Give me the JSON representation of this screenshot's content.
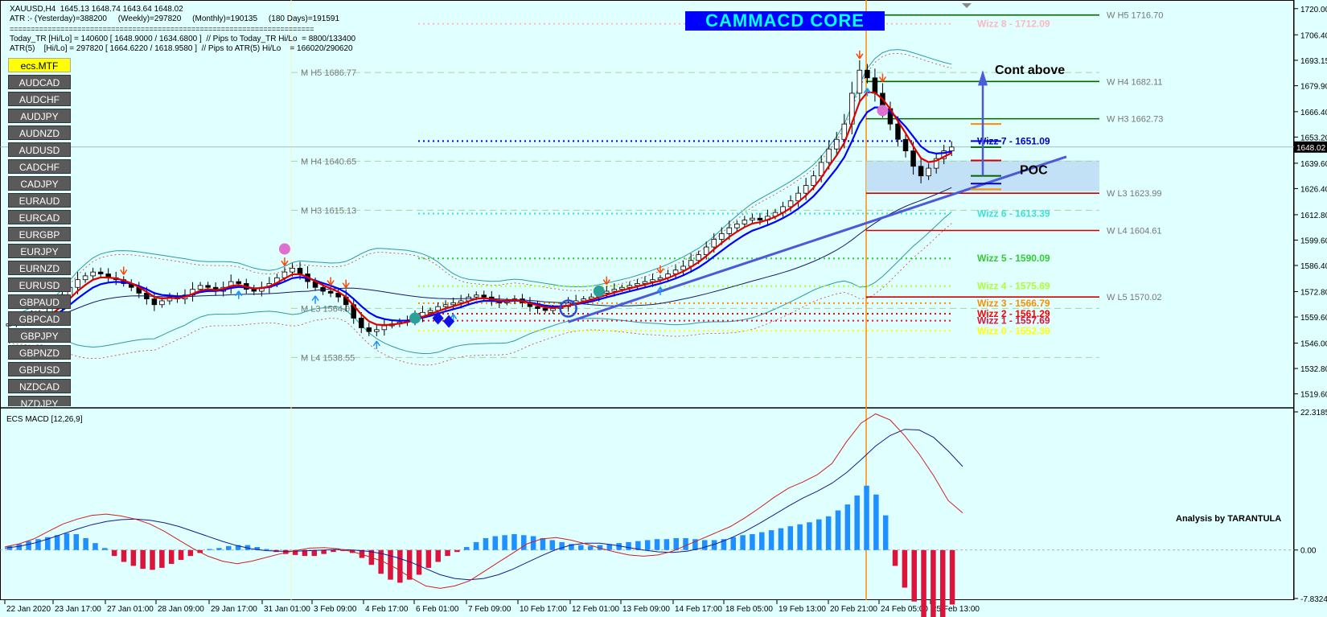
{
  "header": {
    "symbol_line": "XAUUSD,H4  1645.13 1648.74 1643.64 1648.02",
    "atr_line": "ATR :- (Yesterday)=388200     (Weekly)=297820     (Monthly)=190135     (180 Days)=191591",
    "separator": "========================================================================",
    "today_tr_line": "Today_TR [Hi/Lo] = 140600 [ 1648.9000 / 1634.6800 ]  // Pips to Today_TR Hi/Lo  = 8800/133400",
    "atr5_line": "ATR(5)    [Hi/Lo] = 297820 [ 1664.6220 / 1618.9580 ]  // Pips to ATR(5) Hi/Lo    = 166020/290620"
  },
  "brand": "CAMMACD CORE",
  "symbols": {
    "active": "ecs.MTF",
    "items": [
      "AUDCAD",
      "AUDCHF",
      "AUDJPY",
      "AUDNZD",
      "AUDUSD",
      "CADCHF",
      "CADJPY",
      "EURAUD",
      "EURCAD",
      "EURGBP",
      "EURJPY",
      "EURNZD",
      "EURUSD",
      "GBPAUD",
      "GBPCAD",
      "GBPJPY",
      "GBPNZD",
      "GBPUSD",
      "NZDCAD",
      "NZDJPY"
    ]
  },
  "annotations": {
    "cont_above": "Cont above",
    "poc": "POC",
    "credit": "Analysis by TARANTULA",
    "macd_title": "ECS MACD [12,26,9]"
  },
  "colors": {
    "background": "#e0ffff",
    "candle_up": "#ffffff",
    "candle_down": "#000000",
    "ema_fast": "#e00000",
    "ema_slow": "#0000ff",
    "macd_pos": "#1e90ff",
    "macd_neg": "#dc143c",
    "vertical_line": "#ff8c00"
  },
  "chart_data": [
    {
      "type": "candlestick",
      "title": "XAUUSD,H4",
      "price_axis": {
        "ticks": [
          1720.0,
          1706.4,
          1693.15,
          1679.9,
          1666.4,
          1653.2,
          1639.6,
          1626.4,
          1612.8,
          1599.6,
          1586.4,
          1572.8,
          1559.6,
          1546.0,
          1532.8,
          1519.6
        ],
        "current_price": 1648.02,
        "range": [
          1514,
          1722
        ]
      },
      "time_axis": {
        "ticks": [
          "22 Jan 2020",
          "23 Jan 17:00",
          "27 Jan 01:00",
          "28 Jan 09:00",
          "29 Jan 17:00",
          "31 Jan 01:00",
          "3 Feb 09:00",
          "4 Feb 17:00",
          "6 Feb 01:00",
          "7 Feb 09:00",
          "10 Feb 17:00",
          "12 Feb 01:00",
          "13 Feb 09:00",
          "14 Feb 17:00",
          "18 Feb 05:00",
          "19 Feb 13:00",
          "20 Feb 21:00",
          "24 Feb 05:00",
          "25 Feb 13:00"
        ]
      },
      "series": [
        {
          "name": "price",
          "close": [
            1556,
            1557,
            1558,
            1560,
            1559,
            1562,
            1566,
            1570,
            1575,
            1579,
            1581,
            1583,
            1582,
            1580,
            1579,
            1577,
            1575,
            1572,
            1569,
            1566,
            1568,
            1570,
            1569,
            1571,
            1574,
            1576,
            1575,
            1573,
            1575,
            1578,
            1577,
            1574,
            1573,
            1575,
            1577,
            1580,
            1583,
            1585,
            1582,
            1578,
            1575,
            1573,
            1572,
            1570,
            1566,
            1559,
            1554,
            1552,
            1553,
            1555,
            1556,
            1557,
            1558,
            1560,
            1562,
            1563,
            1565,
            1566,
            1567,
            1568,
            1570,
            1571,
            1570,
            1568,
            1567,
            1568,
            1569,
            1567,
            1565,
            1564,
            1563,
            1564,
            1565,
            1567,
            1568,
            1569,
            1570,
            1572,
            1573,
            1574,
            1575,
            1576,
            1577,
            1578,
            1579,
            1580,
            1582,
            1584,
            1586,
            1589,
            1592,
            1596,
            1600,
            1603,
            1606,
            1608,
            1610,
            1611,
            1610,
            1612,
            1614,
            1617,
            1620,
            1624,
            1628,
            1633,
            1640,
            1647,
            1652,
            1660,
            1676,
            1688,
            1684,
            1676,
            1668,
            1660,
            1652,
            1646,
            1638,
            1633,
            1637,
            1642,
            1646,
            1648
          ]
        }
      ],
      "pivot_levels": [
        {
          "label": "W H5 1716.70",
          "value": 1716.7
        },
        {
          "label": "W H4 1682.11",
          "value": 1682.11
        },
        {
          "label": "W H3 1662.73",
          "value": 1662.73
        },
        {
          "label": "W L3 1623.99",
          "value": 1623.99
        },
        {
          "label": "W L4 1604.61",
          "value": 1604.61
        },
        {
          "label": "W L5 1570.02",
          "value": 1570.02
        },
        {
          "label": "M H5 1686.77",
          "value": 1686.77
        },
        {
          "label": "M H4 1640.65",
          "value": 1640.65
        },
        {
          "label": "M H3 1615.13",
          "value": 1615.13
        },
        {
          "label": "M L3 1564.07",
          "value": 1564.07
        },
        {
          "label": "M L4 1538.55",
          "value": 1538.55
        }
      ],
      "wizz_levels": [
        {
          "label": "Wizz 8 - 1712.09",
          "value": 1712.09,
          "color": "#ffb6c1"
        },
        {
          "label": "Wizz 7 - 1651.09",
          "value": 1651.09,
          "color": "#0000cd"
        },
        {
          "label": "Wizz 6 - 1613.39",
          "value": 1613.39,
          "color": "#40e0d0"
        },
        {
          "label": "Wizz 5 - 1590.09",
          "value": 1590.09,
          "color": "#32cd32"
        },
        {
          "label": "Wizz 4 - 1575.69",
          "value": 1575.69,
          "color": "#adff2f"
        },
        {
          "label": "Wizz 3 - 1566.79",
          "value": 1566.79,
          "color": "#ff8c00"
        },
        {
          "label": "Wizz 2 - 1561.29",
          "value": 1561.29,
          "color": "#ff0000"
        },
        {
          "label": "Wizz 1 - 1557.69",
          "value": 1557.69,
          "color": "#dc143c"
        },
        {
          "label": "Wizz 0 - 1552.39",
          "value": 1552.39,
          "color": "#ffff00"
        }
      ]
    },
    {
      "type": "bar",
      "title": "ECS MACD [12,26,9]",
      "value_axis": {
        "ticks": [
          22.3185,
          0.0,
          -7.8324
        ],
        "range": [
          -7.8324,
          22.3185
        ]
      },
      "series": [
        {
          "name": "histogram",
          "values": [
            0.4,
            0.6,
            0.9,
            1.1,
            1.3,
            1.5,
            1.7,
            1.6,
            1.2,
            0.7,
            0.2,
            -0.6,
            -1.2,
            -1.6,
            -1.9,
            -2.0,
            -1.8,
            -1.4,
            -1.0,
            -0.6,
            -0.3,
            0.1,
            0.2,
            0.4,
            0.5,
            0.5,
            0.3,
            0.1,
            -0.2,
            -0.4,
            -0.5,
            -0.6,
            -0.6,
            -0.4,
            -0.2,
            -0.1,
            -0.3,
            -0.8,
            -1.5,
            -2.4,
            -3.0,
            -3.3,
            -3.0,
            -2.5,
            -1.8,
            -1.2,
            -0.6,
            -0.2,
            0.3,
            0.8,
            1.2,
            1.4,
            1.5,
            1.6,
            1.5,
            1.4,
            1.2,
            1.0,
            0.8,
            0.6,
            0.5,
            0.4,
            0.5,
            0.6,
            0.7,
            0.8,
            0.9,
            1.0,
            1.1,
            1.1,
            1.2,
            1.2,
            1.1,
            1.0,
            1.0,
            1.1,
            1.3,
            1.5,
            1.6,
            1.8,
            2.0,
            2.2,
            2.4,
            2.6,
            2.8,
            3.1,
            3.4,
            4.0,
            4.6,
            5.5,
            6.5,
            5.6,
            3.5,
            -1.6,
            -3.8,
            -5.2,
            -6.8,
            -7.6,
            -7.2,
            -5.5
          ]
        },
        {
          "name": "macd",
          "values": [
            0.5,
            1.0,
            1.8,
            3.0,
            4.2,
            5.0,
            5.6,
            5.8,
            5.5,
            5.0,
            4.2,
            3.0,
            1.6,
            0.2,
            -1.0,
            -1.8,
            -2.2,
            -1.8,
            -1.2,
            -0.6,
            -0.1,
            0.3,
            0.4,
            0.2,
            -0.3,
            -1.0,
            -1.8,
            -3.0,
            -4.5,
            -5.8,
            -6.2,
            -5.8,
            -5.0,
            -3.5,
            -2.0,
            -0.5,
            1.0,
            1.8,
            2.0,
            1.6,
            1.0,
            0.3,
            -0.3,
            -0.8,
            -1.0,
            -0.8,
            -0.2,
            0.8,
            1.8,
            2.8,
            3.8,
            5.2,
            6.8,
            8.5,
            10.0,
            11.0,
            12.2,
            14.0,
            17.5,
            20.5,
            22.0,
            21.0,
            18.5,
            15.5,
            12.0,
            8.0,
            6.0
          ]
        },
        {
          "name": "signal",
          "values": [
            0.3,
            0.6,
            1.1,
            1.8,
            2.6,
            3.4,
            4.1,
            4.6,
            4.9,
            5.0,
            4.8,
            4.4,
            3.8,
            3.0,
            2.2,
            1.4,
            0.7,
            0.2,
            -0.1,
            -0.2,
            -0.2,
            -0.1,
            0.0,
            0.1,
            0.0,
            -0.2,
            -0.6,
            -1.2,
            -2.0,
            -3.0,
            -4.0,
            -4.6,
            -4.8,
            -4.6,
            -4.0,
            -3.1,
            -2.0,
            -0.9,
            0.1,
            0.8,
            1.1,
            1.1,
            0.8,
            0.4,
            0.0,
            -0.3,
            -0.4,
            -0.2,
            0.3,
            1.0,
            1.9,
            3.0,
            4.3,
            5.7,
            7.1,
            8.4,
            9.5,
            10.8,
            12.5,
            14.6,
            16.8,
            18.5,
            19.5,
            19.4,
            18.2,
            16.0,
            13.5
          ]
        }
      ]
    }
  ]
}
